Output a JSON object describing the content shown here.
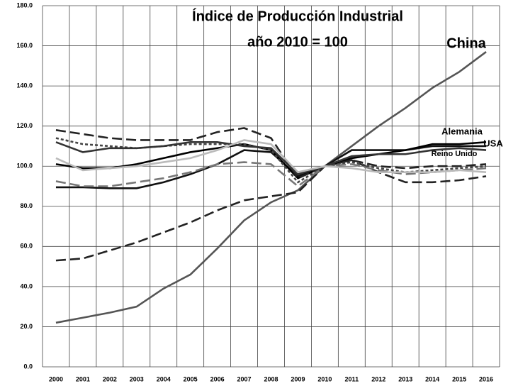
{
  "chart_data": {
    "type": "line",
    "title": "Índice de Producción Industrial",
    "subtitle": "año 2010 = 100",
    "categories": [
      "2000",
      "2001",
      "2002",
      "2003",
      "2004",
      "2005",
      "2006",
      "2007",
      "2008",
      "2009",
      "2010",
      "2011",
      "2012",
      "2013",
      "2014",
      "2015",
      "2016"
    ],
    "ylim": [
      0,
      180
    ],
    "yticks": [
      {
        "value": 0,
        "label": "0.0"
      },
      {
        "value": 20,
        "label": "20.0"
      },
      {
        "value": 40,
        "label": "40.0"
      },
      {
        "value": 60,
        "label": "60.0"
      },
      {
        "value": 80,
        "label": "80.0"
      },
      {
        "value": 100,
        "label": "100.0"
      },
      {
        "value": 120,
        "label": "120.0"
      },
      {
        "value": 140,
        "label": "140.0"
      },
      {
        "value": 160,
        "label": "160.0"
      },
      {
        "value": 180,
        "label": "180.0"
      }
    ],
    "grid": true,
    "series": [
      {
        "name": "China",
        "color": "#555555",
        "dash": "solid",
        "values": [
          22,
          24.5,
          27,
          30,
          39,
          46,
          59,
          73,
          82,
          88,
          100,
          110,
          120,
          129,
          139,
          147,
          157
        ]
      },
      {
        "color": "#222222",
        "dash": "dashed",
        "values": [
          53,
          54,
          58,
          62,
          67,
          72,
          78,
          83,
          85,
          87,
          100,
          103,
          97,
          92,
          92,
          93,
          95
        ]
      },
      {
        "name": "Alemania",
        "color": "#111111",
        "dash": "solid",
        "values": [
          89.5,
          89.5,
          89,
          89,
          92,
          96,
          101,
          108,
          107,
          95,
          100,
          108,
          108,
          108,
          110,
          110,
          110
        ]
      },
      {
        "name": "USA",
        "color": "#000000",
        "dash": "solid",
        "values": [
          101,
          99,
          99,
          101,
          104,
          107,
          109,
          111,
          108,
          94,
          100,
          104,
          106,
          108,
          111,
          111,
          112
        ]
      },
      {
        "color": "#222222",
        "dash": "dashed",
        "values": [
          118,
          116,
          114,
          113,
          113,
          113,
          117,
          119,
          114,
          94,
          100,
          103,
          100,
          99,
          100,
          100,
          101
        ]
      },
      {
        "color": "#444444",
        "dash": "dotted",
        "values": [
          114,
          111,
          110,
          109,
          110,
          111,
          111,
          111,
          108,
          92,
          100,
          102,
          99,
          97,
          98,
          99,
          100
        ]
      },
      {
        "color": "#777777",
        "dash": "dashed",
        "values": [
          92.5,
          90,
          90,
          92,
          94,
          97,
          101,
          102,
          101,
          90,
          100,
          101,
          98,
          96,
          97,
          98,
          99
        ]
      },
      {
        "name": "Reino Unido",
        "color": "#333333",
        "dash": "solid",
        "values": [
          112,
          107,
          109,
          109,
          110,
          112,
          112,
          110,
          109,
          96,
          100,
          105,
          106,
          106,
          108,
          109,
          108
        ]
      },
      {
        "color": "#bbbbbb",
        "dash": "solid",
        "values": [
          104,
          98,
          99,
          100,
          102,
          104,
          108,
          113,
          111,
          97,
          100,
          99,
          97,
          97,
          97,
          98,
          97
        ]
      }
    ]
  }
}
